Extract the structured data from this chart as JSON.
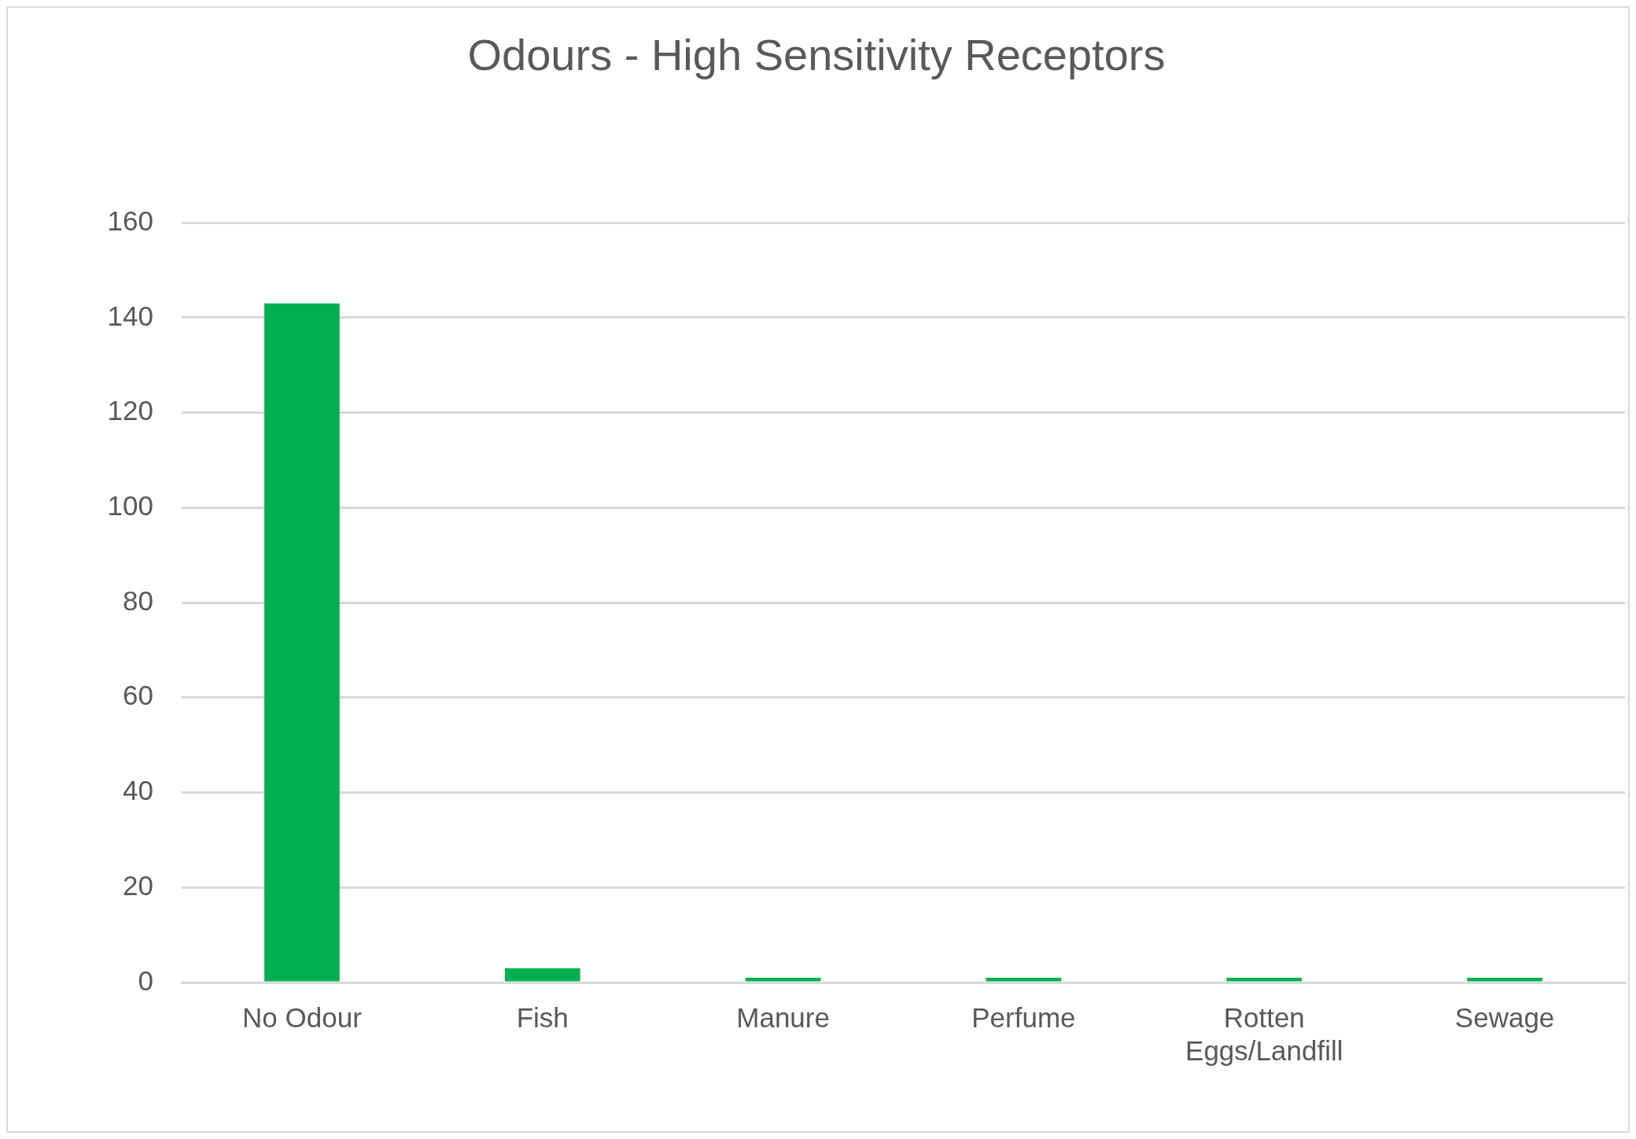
{
  "chart_data": {
    "type": "bar",
    "title": "Odours - High Sensitivity Receptors",
    "categories": [
      "No Odour",
      "Fish",
      "Manure",
      "Perfume",
      "Rotten Eggs/Landfill",
      "Sewage"
    ],
    "values": [
      143,
      3,
      1,
      1,
      1,
      1
    ],
    "color": "#00b050",
    "ylim": [
      0,
      160
    ],
    "yticks": [
      0,
      20,
      40,
      60,
      80,
      100,
      120,
      140,
      160
    ],
    "grid": "y"
  }
}
